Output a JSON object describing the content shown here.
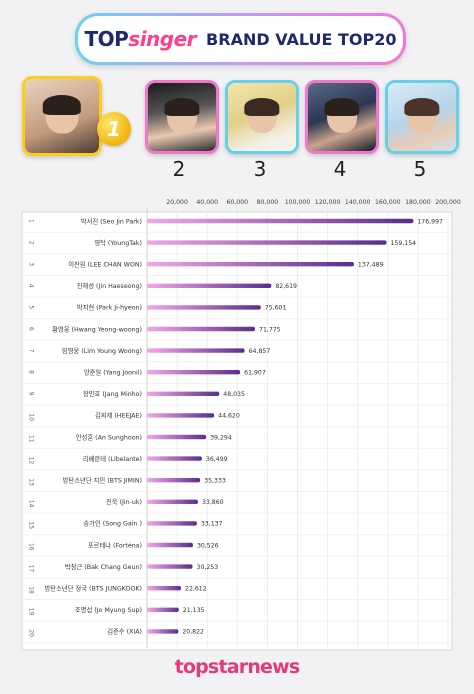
{
  "header": {
    "logo_top": "TOP",
    "logo_singer": "singer",
    "title": "BRAND VALUE TOP20"
  },
  "top5": [
    {
      "rank": "1",
      "medal_label": "1"
    },
    {
      "rank": "2"
    },
    {
      "rank": "3"
    },
    {
      "rank": "4"
    },
    {
      "rank": "5"
    }
  ],
  "colors": {
    "accent_pink": "#ff3f8e",
    "navy": "#1d2a6b",
    "bar_start": "#f3a8e6",
    "bar_end": "#5a2d8c",
    "gold": "#ffcc1a",
    "cyan": "#66d0e8"
  },
  "chart_data": {
    "type": "bar",
    "orientation": "horizontal",
    "xlim": [
      0,
      200000
    ],
    "x_ticks": [
      "20,000",
      "40,000",
      "60,000",
      "80,000",
      "100,000",
      "120,000",
      "140,000",
      "160,000",
      "180,000",
      "200,000"
    ],
    "grid": true,
    "rows": [
      {
        "rank": "1",
        "name": "박서진 (Seo Jin Park)",
        "value": 176997,
        "label": "176,997"
      },
      {
        "rank": "2",
        "name": "영탁 (YoungTak)",
        "value": 159154,
        "label": "159,154"
      },
      {
        "rank": "3",
        "name": "이찬원 (LEE CHAN WON)",
        "value": 137489,
        "label": "137,489"
      },
      {
        "rank": "4",
        "name": "진해성 (Jin Haeseong)",
        "value": 82619,
        "label": "82,619"
      },
      {
        "rank": "5",
        "name": "박지현 (Park Ji-hyeon)",
        "value": 75601,
        "label": "75,601"
      },
      {
        "rank": "6",
        "name": "황영웅 (Hwang Yeong-woong)",
        "value": 71775,
        "label": "71,775"
      },
      {
        "rank": "7",
        "name": "임영웅 (Lim Young Woong)",
        "value": 64857,
        "label": "64,857"
      },
      {
        "rank": "8",
        "name": "양준일 (Yang Joonil)",
        "value": 61907,
        "label": "61,907"
      },
      {
        "rank": "9",
        "name": "장민호 (Jang Minho)",
        "value": 48035,
        "label": "48,035"
      },
      {
        "rank": "10",
        "name": "김희재 (HEEJAE)",
        "value": 44620,
        "label": "44,620"
      },
      {
        "rank": "11",
        "name": "안성훈 (An Sunghoon)",
        "value": 39294,
        "label": "39,294"
      },
      {
        "rank": "12",
        "name": "리베란테 (Libelante)",
        "value": 36499,
        "label": "36,499"
      },
      {
        "rank": "13",
        "name": "방탄소년단 지민 (BTS JIMIN)",
        "value": 35333,
        "label": "35,333"
      },
      {
        "rank": "14",
        "name": "진욱 (Jin-uk)",
        "value": 33860,
        "label": "33,860"
      },
      {
        "rank": "15",
        "name": "송가인 (Song Gain )",
        "value": 33137,
        "label": "33,137"
      },
      {
        "rank": "16",
        "name": "포르테나 (Forténa)",
        "value": 30526,
        "label": "30,526"
      },
      {
        "rank": "17",
        "name": "박창근 (Bak Chang Geun)",
        "value": 30253,
        "label": "30,253"
      },
      {
        "rank": "18",
        "name": "방탄소년단 정국 (BTS JUNGKOOK)",
        "value": 22612,
        "label": "22,612"
      },
      {
        "rank": "19",
        "name": "조명섭 (Jo Myung Sup)",
        "value": 21135,
        "label": "21,135"
      },
      {
        "rank": "20",
        "name": "김준수 (XIA)",
        "value": 20822,
        "label": "20,822"
      }
    ]
  },
  "footer": {
    "logo": "topstarnews"
  }
}
